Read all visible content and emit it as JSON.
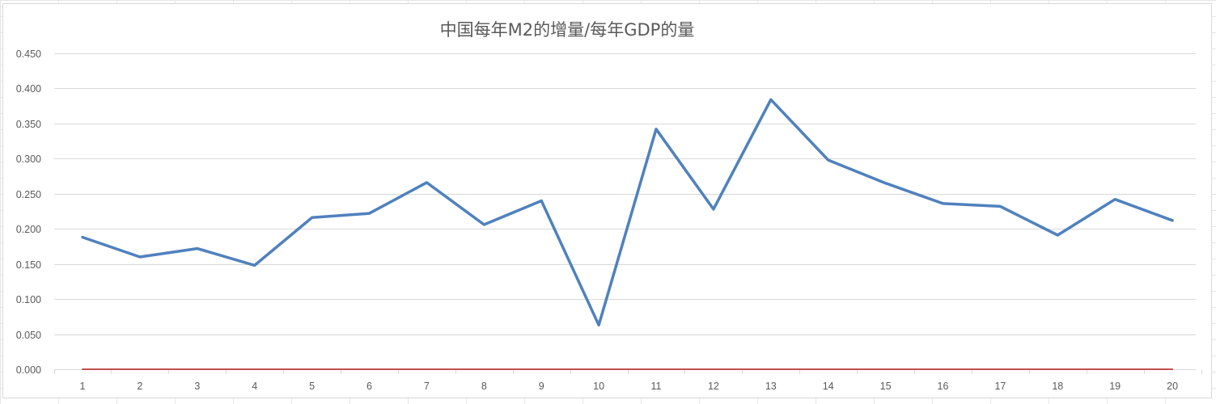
{
  "chart_data": {
    "type": "line",
    "title": "中国每年M2的增量/每年GDP的量",
    "xlabel": "",
    "ylabel": "",
    "x": [
      1,
      2,
      3,
      4,
      5,
      6,
      7,
      8,
      9,
      10,
      11,
      12,
      13,
      14,
      15,
      16,
      17,
      18,
      19,
      20
    ],
    "x_tick_labels": [
      "1",
      "2",
      "3",
      "4",
      "5",
      "6",
      "7",
      "8",
      "9",
      "10",
      "11",
      "12",
      "13",
      "14",
      "15",
      "16",
      "17",
      "18",
      "19",
      "20"
    ],
    "y_tick_labels": [
      "0.000",
      "0.050",
      "0.100",
      "0.150",
      "0.200",
      "0.250",
      "0.300",
      "0.350",
      "0.400",
      "0.450"
    ],
    "ylim": [
      0,
      0.45
    ],
    "y_ticks": [
      0,
      0.05,
      0.1,
      0.15,
      0.2,
      0.25,
      0.3,
      0.35,
      0.4,
      0.45
    ],
    "grid": true,
    "legend": "none",
    "series": [
      {
        "color": "#4f81bd",
        "values": [
          0.188,
          0.16,
          0.172,
          0.148,
          0.216,
          0.222,
          0.266,
          0.206,
          0.24,
          0.063,
          0.342,
          0.228,
          0.384,
          0.298,
          0.265,
          0.236,
          0.232,
          0.191,
          0.242,
          0.212
        ]
      },
      {
        "color": "#c0504d",
        "values": [
          0,
          0,
          0,
          0,
          0,
          0,
          0,
          0,
          0,
          0,
          0,
          0,
          0,
          0,
          0,
          0,
          0,
          0,
          0,
          0
        ]
      }
    ]
  }
}
